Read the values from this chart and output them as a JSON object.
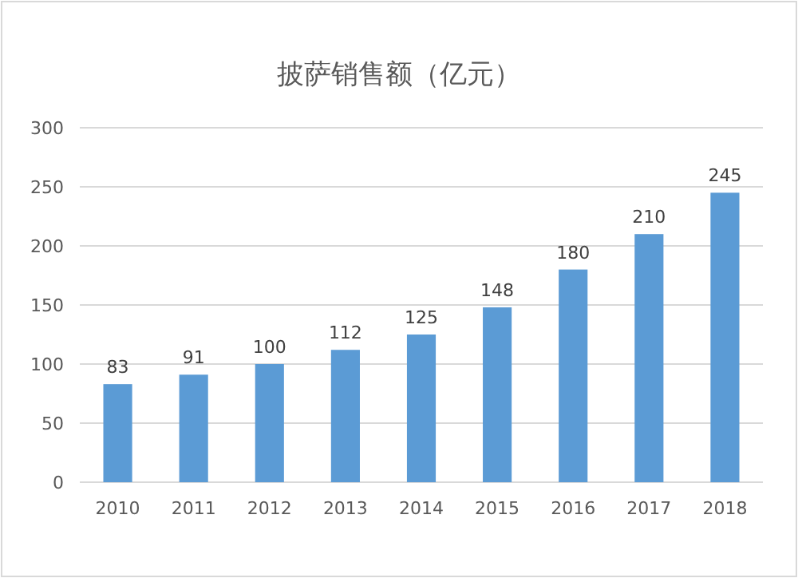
{
  "chart_data": {
    "type": "bar",
    "title": "披萨销售额（亿元）",
    "categories": [
      "2010",
      "2011",
      "2012",
      "2013",
      "2014",
      "2015",
      "2016",
      "2017",
      "2018"
    ],
    "values": [
      83,
      91,
      100,
      112,
      125,
      148,
      180,
      210,
      245
    ],
    "color": "#5b9bd5",
    "ylim": [
      0,
      300
    ],
    "yticks": [
      0,
      50,
      100,
      150,
      200,
      250,
      300
    ],
    "grid": "y",
    "data_labels": true
  }
}
